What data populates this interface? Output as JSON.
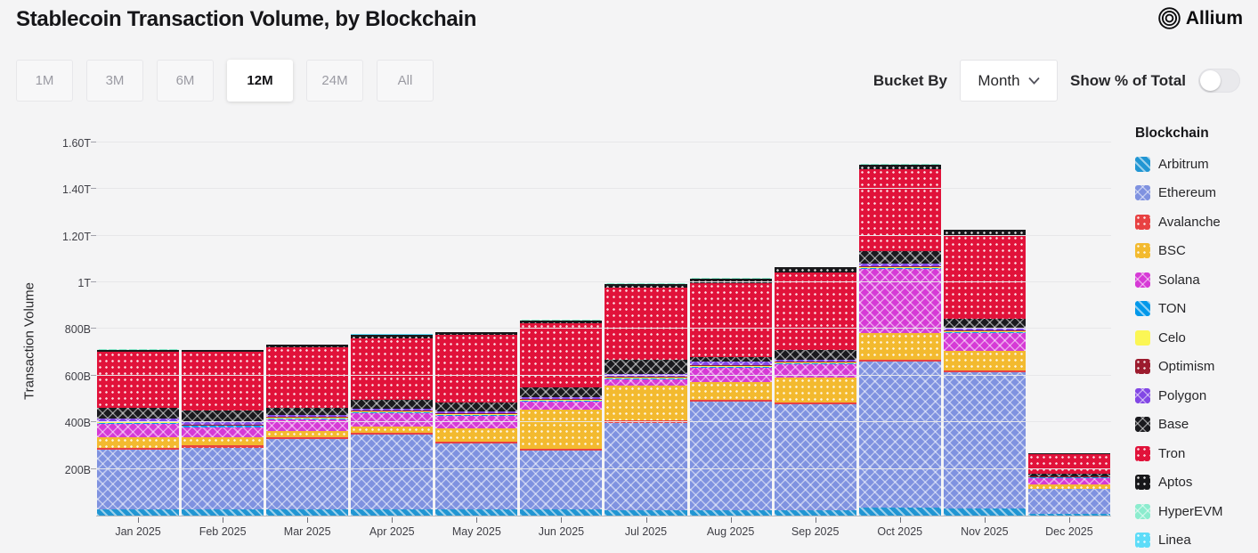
{
  "header": {
    "title": "Stablecoin Transaction Volume, by Blockchain",
    "brand": "Allium"
  },
  "controls": {
    "ranges": [
      "1M",
      "3M",
      "6M",
      "12M",
      "24M",
      "All"
    ],
    "active_range": "12M",
    "bucket_by_label": "Bucket By",
    "bucket_value": "Month",
    "toggle_label": "Show % of Total",
    "toggle_on": false
  },
  "chart_data": {
    "type": "bar",
    "stacked": true,
    "title": "Stablecoin Transaction Volume, by Blockchain",
    "ylabel": "Transaction Volume",
    "unit": "billions USD",
    "ylim": [
      0,
      1680
    ],
    "grid": true,
    "legend_position": "right",
    "legend_title": "Blockchain",
    "yticks": [
      {
        "value": 200,
        "label": "200B"
      },
      {
        "value": 400,
        "label": "400B"
      },
      {
        "value": 600,
        "label": "600B"
      },
      {
        "value": 800,
        "label": "800B"
      },
      {
        "value": 1000,
        "label": "1T"
      },
      {
        "value": 1200,
        "label": "1.20T"
      },
      {
        "value": 1400,
        "label": "1.40T"
      },
      {
        "value": 1600,
        "label": "1.60T"
      }
    ],
    "categories": [
      "Jan 2025",
      "Feb 2025",
      "Mar 2025",
      "Apr 2025",
      "May 2025",
      "Jun 2025",
      "Jul 2025",
      "Aug 2025",
      "Sep 2025",
      "Oct 2025",
      "Nov 2025",
      "Dec 2025"
    ],
    "series": [
      {
        "name": "Arbitrum",
        "color": "#2196d3",
        "pattern": "stripes",
        "values": [
          27,
          27,
          27,
          27,
          27,
          27,
          23,
          23,
          23,
          35,
          30,
          8
        ]
      },
      {
        "name": "Ethereum",
        "color": "#7f92e0",
        "pattern": "cross",
        "values": [
          255,
          265,
          300,
          320,
          282,
          250,
          373,
          465,
          453,
          625,
          585,
          105
        ]
      },
      {
        "name": "Avalanche",
        "color": "#e84142",
        "pattern": "dots",
        "values": [
          8,
          8,
          8,
          8,
          8,
          8,
          11,
          8,
          8,
          8,
          8,
          3
        ]
      },
      {
        "name": "BSC",
        "color": "#f3ba2f",
        "pattern": "dots",
        "values": [
          46,
          38,
          27,
          27,
          57,
          171,
          152,
          76,
          107,
          114,
          84,
          19
        ]
      },
      {
        "name": "Solana",
        "color": "#d63ad6",
        "pattern": "cross",
        "values": [
          57,
          42,
          50,
          57,
          53,
          34,
          27,
          61,
          57,
          274,
          76,
          27
        ]
      },
      {
        "name": "TON",
        "color": "#0098ea",
        "pattern": "stripes",
        "values": [
          4,
          4,
          4,
          4,
          4,
          4,
          4,
          4,
          4,
          5,
          5,
          2
        ]
      },
      {
        "name": "Celo",
        "color": "#fbf655",
        "pattern": "solid",
        "values": [
          3,
          3,
          3,
          3,
          3,
          3,
          3,
          3,
          3,
          3,
          3,
          1
        ]
      },
      {
        "name": "Optimism",
        "color": "#9c1b2e",
        "pattern": "dots",
        "values": [
          4,
          4,
          4,
          4,
          4,
          4,
          4,
          4,
          4,
          4,
          4,
          2
        ]
      },
      {
        "name": "Polygon",
        "color": "#8247e5",
        "pattern": "cross",
        "values": [
          11,
          15,
          8,
          8,
          8,
          8,
          11,
          15,
          11,
          11,
          11,
          3
        ]
      },
      {
        "name": "Base",
        "color": "#1a1a1e",
        "pattern": "cross",
        "values": [
          46,
          46,
          30,
          38,
          38,
          42,
          61,
          19,
          42,
          57,
          38,
          8
        ]
      },
      {
        "name": "Tron",
        "color": "#e1123a",
        "pattern": "dots",
        "values": [
          240,
          250,
          260,
          265,
          290,
          275,
          310,
          320,
          330,
          350,
          358,
          85
        ]
      },
      {
        "name": "Aptos",
        "color": "#17171a",
        "pattern": "dots",
        "values": [
          11,
          8,
          11,
          15,
          12,
          12,
          15,
          19,
          23,
          19,
          23,
          3
        ]
      },
      {
        "name": "HyperEVM",
        "color": "#8cecce",
        "pattern": "cross",
        "values": [
          1,
          1,
          1,
          1,
          1,
          1,
          1,
          1,
          1,
          2,
          2,
          1
        ]
      },
      {
        "name": "Linea",
        "color": "#5edcf8",
        "pattern": "dots",
        "values": [
          1,
          1,
          1,
          1,
          1,
          1,
          1,
          1,
          1,
          1,
          1,
          1
        ]
      }
    ]
  }
}
